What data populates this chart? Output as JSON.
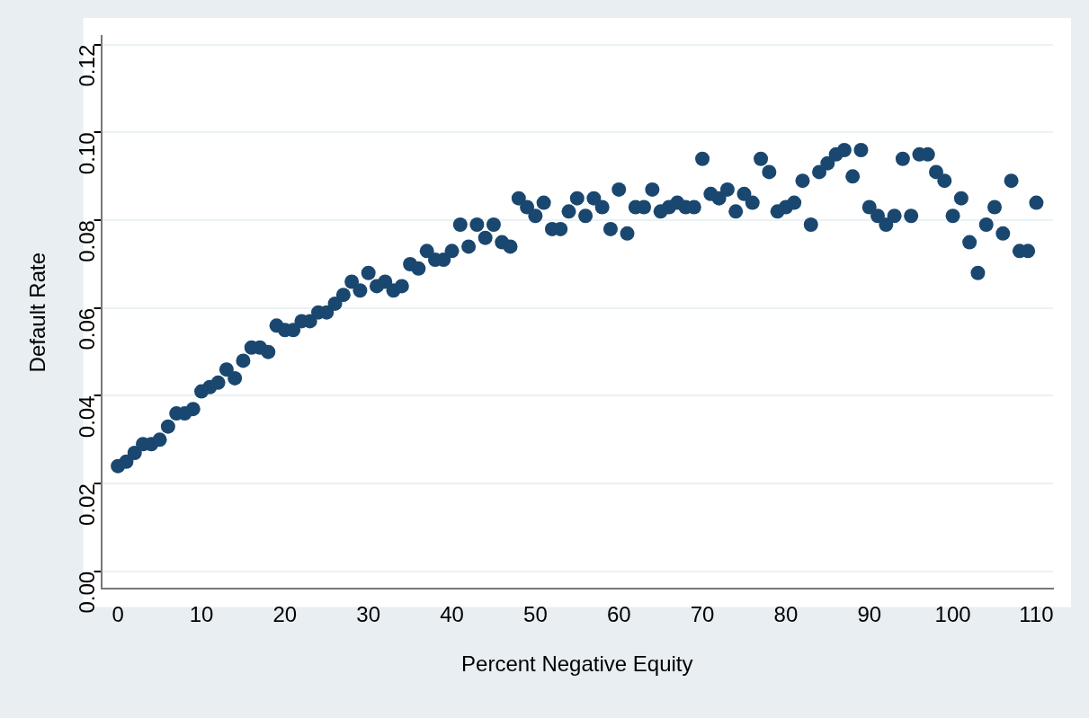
{
  "chart_data": {
    "type": "scatter",
    "xlabel": "Percent Negative Equity",
    "ylabel": "Default Rate",
    "x": [
      0,
      1,
      2,
      3,
      4,
      5,
      6,
      7,
      8,
      9,
      10,
      11,
      12,
      13,
      14,
      15,
      16,
      17,
      18,
      19,
      20,
      21,
      22,
      23,
      24,
      25,
      26,
      27,
      28,
      29,
      30,
      31,
      32,
      33,
      34,
      35,
      36,
      37,
      38,
      39,
      40,
      41,
      42,
      43,
      44,
      45,
      46,
      47,
      48,
      49,
      50,
      51,
      52,
      53,
      54,
      55,
      56,
      57,
      58,
      59,
      60,
      61,
      62,
      63,
      64,
      65,
      66,
      67,
      68,
      69,
      70,
      71,
      72,
      73,
      74,
      75,
      76,
      77,
      78,
      79,
      80,
      81,
      82,
      83,
      84,
      85,
      86,
      87,
      88,
      89,
      90,
      91,
      92,
      93,
      94,
      95,
      96,
      97,
      98,
      99,
      100,
      101,
      102,
      103,
      104,
      105,
      106,
      107,
      108,
      109,
      110
    ],
    "series": [
      {
        "color": "#1a476f",
        "values": [
          0.024,
          0.025,
          0.027,
          0.029,
          0.029,
          0.03,
          0.033,
          0.036,
          0.036,
          0.037,
          0.041,
          0.042,
          0.043,
          0.046,
          0.044,
          0.048,
          0.051,
          0.051,
          0.05,
          0.056,
          0.055,
          0.055,
          0.057,
          0.057,
          0.059,
          0.059,
          0.061,
          0.063,
          0.066,
          0.064,
          0.068,
          0.065,
          0.066,
          0.064,
          0.065,
          0.07,
          0.069,
          0.073,
          0.071,
          0.071,
          0.073,
          0.079,
          0.074,
          0.079,
          0.076,
          0.079,
          0.075,
          0.074,
          0.085,
          0.083,
          0.081,
          0.084,
          0.078,
          0.078,
          0.082,
          0.085,
          0.081,
          0.085,
          0.083,
          0.078,
          0.087,
          0.077,
          0.083,
          0.083,
          0.087,
          0.082,
          0.083,
          0.084,
          0.083,
          0.083,
          0.094,
          0.086,
          0.085,
          0.087,
          0.082,
          0.086,
          0.084,
          0.094,
          0.091,
          0.082,
          0.083,
          0.084,
          0.089,
          0.079,
          0.091,
          0.093,
          0.095,
          0.096,
          0.09,
          0.096,
          0.083,
          0.081,
          0.079,
          0.081,
          0.094,
          0.081,
          0.095,
          0.095,
          0.091,
          0.089,
          0.081,
          0.085,
          0.075,
          0.068,
          0.079,
          0.083,
          0.077,
          0.089,
          0.073,
          0.073,
          0.084
        ]
      }
    ],
    "xlim": [
      -2,
      112
    ],
    "xticks": [
      0,
      10,
      20,
      30,
      40,
      50,
      60,
      70,
      80,
      90,
      100,
      110
    ],
    "ylim": [
      -0.004,
      0.122
    ],
    "yticks": [
      {
        "value": 0,
        "label": "0.00"
      },
      {
        "value": 0.02,
        "label": "0.02"
      },
      {
        "value": 0.04,
        "label": "0.04"
      },
      {
        "value": 0.06,
        "label": "0.06"
      },
      {
        "value": 0.08,
        "label": "0.08"
      },
      {
        "value": 0.1,
        "label": "0.10"
      },
      {
        "value": 0.12,
        "label": "0.12"
      }
    ],
    "grid": "y",
    "legend": false,
    "marker": "circle"
  }
}
